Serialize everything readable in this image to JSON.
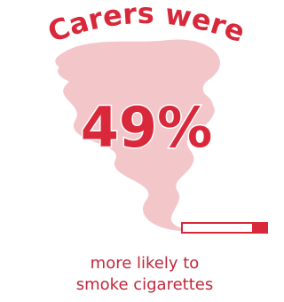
{
  "headline": "Carers were",
  "statistic": "49%",
  "caption": [
    "more likely to",
    "smoke cigarettes"
  ]
}
